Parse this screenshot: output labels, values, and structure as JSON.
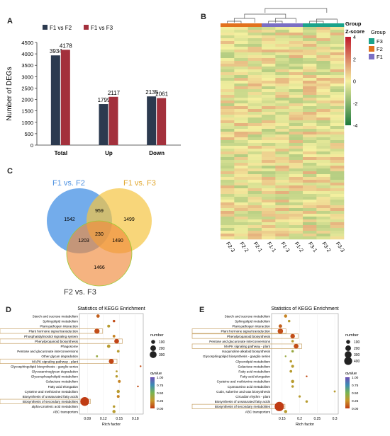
{
  "panels": {
    "a": "A",
    "b": "B",
    "c": "C",
    "d": "D",
    "e": "E"
  },
  "colors": {
    "f1f2": "#2c3a4f",
    "f1f3": "#a3303c",
    "blue": "#5b9ee8",
    "yellow": "#f5c542",
    "orange": "#f08a3c",
    "hm_high": "#c0182a",
    "hm_mid": "#f5f0a0",
    "hm_low": "#1c7a3c",
    "f3": "#1aa38a",
    "f2": "#e2711d",
    "f1": "#7b6fc4"
  },
  "chart_data": [
    {
      "type": "bar",
      "panel": "A",
      "categories": [
        "Total",
        "Up",
        "Down"
      ],
      "series": [
        {
          "name": "F1 vs F2",
          "values": [
            3934,
            1799,
            2135
          ]
        },
        {
          "name": "F1 vs F3",
          "values": [
            4178,
            2117,
            2061
          ]
        }
      ],
      "ylabel": "Number of DEGs",
      "ylim": [
        0,
        4500
      ],
      "yticks": [
        0,
        500,
        1000,
        1500,
        2000,
        2500,
        3000,
        3500,
        4000,
        4500
      ],
      "legend": "top-left"
    },
    {
      "type": "heatmap",
      "panel": "B",
      "columns": [
        "F2-3",
        "F2-2",
        "F2-1",
        "F1-1",
        "F1-3",
        "F1-2",
        "F3-1",
        "F3-2",
        "F3-3"
      ],
      "group_title": "Group",
      "scale_title": "Z-score",
      "scale_ticks": [
        4,
        2,
        0,
        -2,
        -4
      ],
      "groups": [
        "F3",
        "F2",
        "F1"
      ]
    },
    {
      "type": "venn",
      "panel": "C",
      "sets": [
        "F1 vs. F2",
        "F1 vs. F3",
        "F2 vs. F3"
      ],
      "regions": {
        "only_a": 1542,
        "only_b": 1499,
        "only_c": 1466,
        "ab": 959,
        "ac": 1203,
        "bc": 1490,
        "abc": 230
      }
    },
    {
      "type": "scatter",
      "panel": "D",
      "title": "Statistics of KEGG Enrichment",
      "xlabel": "Rich factor",
      "xticks": [
        0.09,
        0.12,
        0.15,
        0.18
      ],
      "xlim": [
        0.075,
        0.195
      ],
      "size_title": "number",
      "size_ticks": [
        100,
        200,
        300
      ],
      "color_title": "qvalue",
      "color_ticks": [
        "1.00",
        "0.75",
        "0.50",
        "0.25",
        "0.00"
      ],
      "terms": [
        "Starch and sucrose metabolism",
        "Sphingolipid metabolism",
        "Plant-pathogen interaction",
        "Plant hormone signal transduction",
        "Phosphatidylinositol signaling system",
        "Phenylpropanoid biosynthesis",
        "Phagosome",
        "Pentose and glucuronate interconversions",
        "Other glycan degradation",
        "MAPK signaling pathway - plant",
        "Glycosphingolipid biosynthesis - ganglio series",
        "Glycosaminoglycan degradation",
        "Glycerophospholipid metabolism",
        "Galactose metabolism",
        "Fatty acid elongation",
        "Cysteine and methionine metabolism",
        "Biosynthesis of unsaturated fatty acids",
        "Biosynthesis of secondary metabolites",
        "alpha-Linolenic acid metabolism",
        "ABC transporters"
      ],
      "rich": [
        0.11,
        0.14,
        0.13,
        0.108,
        0.14,
        0.145,
        0.13,
        0.148,
        0.108,
        0.135,
        0.19,
        0.145,
        0.145,
        0.15,
        0.185,
        0.148,
        0.148,
        0.085,
        0.14,
        0.14
      ],
      "number": [
        55,
        30,
        40,
        130,
        35,
        110,
        55,
        35,
        20,
        120,
        15,
        20,
        30,
        40,
        15,
        50,
        40,
        380,
        30,
        50
      ],
      "qvalue": [
        0.1,
        0.05,
        0.3,
        0.05,
        0.2,
        0.02,
        0.3,
        0.3,
        0.4,
        0.03,
        0.05,
        0.3,
        0.3,
        0.2,
        0.05,
        0.3,
        0.2,
        0.0,
        0.3,
        0.3
      ],
      "highlighted": [
        3,
        5,
        9,
        17
      ]
    },
    {
      "type": "scatter",
      "panel": "E",
      "title": "Statistics of KEGG Enrichment",
      "xlabel": "Rich factor",
      "xticks": [
        0.15,
        0.2,
        0.25,
        0.3
      ],
      "xlim": [
        0.12,
        0.31
      ],
      "size_title": "number",
      "size_ticks": [
        100,
        200,
        300,
        400
      ],
      "color_title": "qvalue",
      "color_ticks": [
        "1.00",
        "0.75",
        "0.50",
        "0.25",
        "0.00"
      ],
      "terms": [
        "Starch and sucrose metabolism",
        "Sphingolipid metabolism",
        "Plant-pathogen interaction",
        "Plant hormone signal transduction",
        "Phenylpropanoid biosynthesis",
        "Pentose and glucuronate interconversions",
        "MAPK signaling pathway - plant",
        "Isoquinoline alkaloid biosynthesis",
        "Glycosphingolipid biosynthesis - ganglio series",
        "Glycerolipid metabolism",
        "Galactose metabolism",
        "Fatty acid metabolism",
        "Fatty acid elongation",
        "Cysteine and methionine metabolism",
        "Cyanoamino acid metabolism",
        "Cutin, suberine and wax biosynthesis",
        "Circadian rhythm - plant",
        "Biosynthesis of unsaturated fatty acids",
        "Biosynthesis of secondary metabolites",
        "ABC transporters"
      ],
      "rich": [
        0.16,
        0.17,
        0.145,
        0.145,
        0.18,
        0.18,
        0.19,
        0.18,
        0.16,
        0.175,
        0.18,
        0.175,
        0.22,
        0.18,
        0.18,
        0.3,
        0.2,
        0.22,
        0.142,
        0.16
      ],
      "number": [
        50,
        30,
        60,
        140,
        100,
        30,
        110,
        30,
        15,
        30,
        40,
        35,
        15,
        50,
        30,
        20,
        25,
        30,
        420,
        50
      ],
      "qvalue": [
        0.2,
        0.3,
        0.1,
        0.05,
        0.05,
        0.3,
        0.05,
        0.4,
        0.4,
        0.3,
        0.3,
        0.3,
        0.05,
        0.3,
        0.3,
        0.3,
        0.3,
        0.3,
        0.0,
        0.3
      ],
      "highlighted": [
        3,
        4,
        6,
        18
      ]
    }
  ]
}
